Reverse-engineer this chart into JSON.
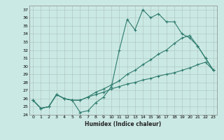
{
  "xlabel": "Humidex (Indice chaleur)",
  "bg_color": "#cbe9e4",
  "grid_color": "#b0c8c4",
  "line_color": "#2e7b6e",
  "xlim": [
    -0.5,
    23.5
  ],
  "ylim": [
    24,
    37.5
  ],
  "xticks": [
    0,
    1,
    2,
    3,
    4,
    5,
    6,
    7,
    8,
    9,
    10,
    11,
    12,
    13,
    14,
    15,
    16,
    17,
    18,
    19,
    20,
    21,
    22,
    23
  ],
  "yticks": [
    24,
    25,
    26,
    27,
    28,
    29,
    30,
    31,
    32,
    33,
    34,
    35,
    36,
    37
  ],
  "series1_x": [
    0,
    1,
    2,
    3,
    4,
    5,
    6,
    7,
    8,
    9,
    10,
    11,
    12,
    13,
    14,
    15,
    16,
    17,
    18,
    19,
    20,
    21,
    22,
    23
  ],
  "series1_y": [
    25.8,
    24.8,
    25.0,
    26.5,
    26.0,
    25.8,
    24.3,
    24.5,
    25.5,
    26.2,
    27.5,
    32.0,
    35.8,
    34.5,
    37.0,
    36.0,
    36.5,
    35.5,
    35.5,
    34.0,
    33.5,
    32.5,
    31.0,
    29.5
  ],
  "series2_x": [
    0,
    1,
    2,
    3,
    4,
    5,
    6,
    7,
    8,
    9,
    10,
    11,
    12,
    13,
    14,
    15,
    16,
    17,
    18,
    19,
    20,
    21,
    22,
    23
  ],
  "series2_y": [
    25.8,
    24.8,
    25.0,
    26.5,
    26.0,
    25.8,
    25.8,
    26.2,
    26.8,
    27.2,
    27.7,
    28.2,
    29.0,
    29.5,
    30.2,
    30.8,
    31.5,
    32.0,
    32.8,
    33.5,
    33.8,
    32.5,
    31.0,
    29.5
  ],
  "series3_x": [
    0,
    1,
    2,
    3,
    4,
    5,
    6,
    7,
    8,
    9,
    10,
    11,
    12,
    13,
    14,
    15,
    16,
    17,
    18,
    19,
    20,
    21,
    22,
    23
  ],
  "series3_y": [
    25.8,
    24.8,
    25.0,
    26.5,
    26.0,
    25.8,
    25.8,
    26.2,
    26.5,
    26.8,
    27.2,
    27.5,
    27.8,
    28.0,
    28.3,
    28.5,
    28.8,
    29.0,
    29.2,
    29.5,
    29.8,
    30.2,
    30.5,
    29.5
  ]
}
